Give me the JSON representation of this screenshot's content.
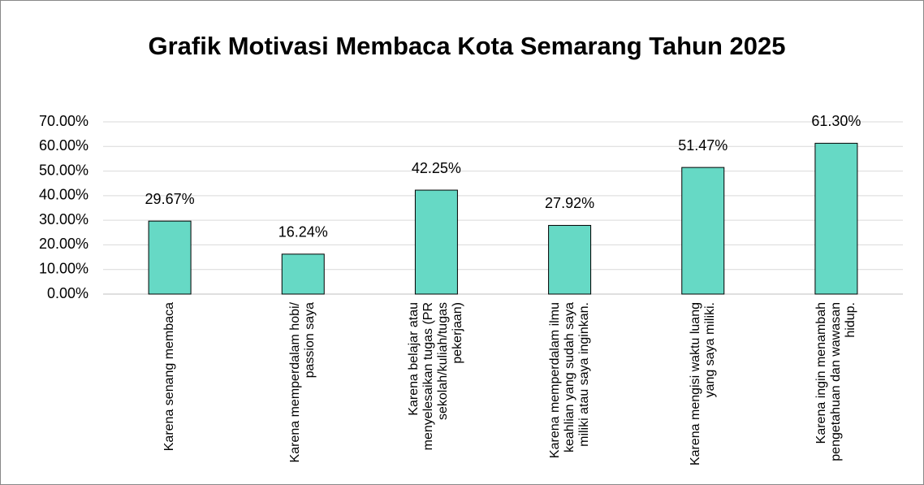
{
  "chart_data": {
    "type": "bar",
    "title": "Grafik Motivasi Membaca Kota Semarang Tahun 2025",
    "categories": [
      "Karena senang membaca",
      "Karena memperdalam hobi/ passion saya",
      "Karena belajar atau menyelesaikan tugas (PR sekolah/kuliah/tugas pekerjaan)",
      "Karena memperdalam ilmu keahlian yang sudah saya miliki atau saya inginkan.",
      "Karena mengisi waktu luang yang saya miliki.",
      "Karena ingin menambah pengetahuan dan wawasan hidup."
    ],
    "values": [
      29.67,
      16.24,
      42.25,
      27.92,
      51.47,
      61.3
    ],
    "value_labels": [
      "29.67%",
      "16.24%",
      "42.25%",
      "27.92%",
      "51.47%",
      "61.30%"
    ],
    "color": "#66d9c5",
    "ylim": [
      0,
      70
    ],
    "yticks": [
      {
        "value": 0,
        "label": "0.00%"
      },
      {
        "value": 10,
        "label": "10.00%"
      },
      {
        "value": 20,
        "label": "20.00%"
      },
      {
        "value": 30,
        "label": "30.00%"
      },
      {
        "value": 40,
        "label": "40.00%"
      },
      {
        "value": 50,
        "label": "50.00%"
      },
      {
        "value": 60,
        "label": "60.00%"
      },
      {
        "value": 70,
        "label": "70.00%"
      }
    ],
    "grid": true
  }
}
